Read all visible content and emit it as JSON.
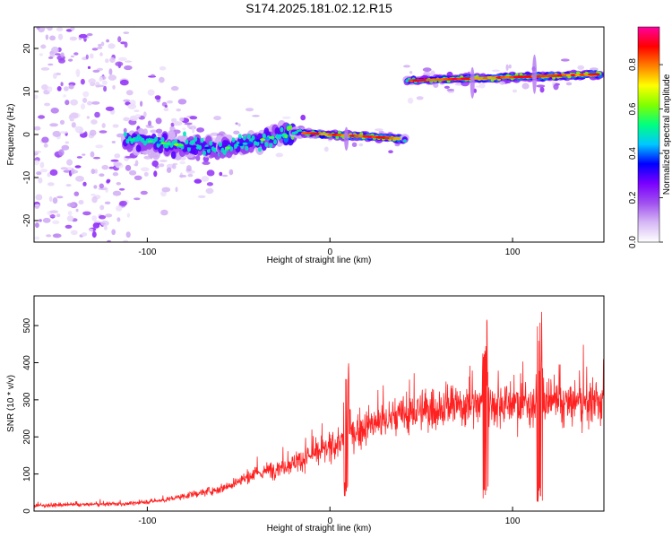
{
  "title": "S174.2025.181.02.12.R15",
  "chart_data": [
    {
      "type": "heatmap",
      "xlabel": "Height of straight line (km)",
      "ylabel": "Frequency (Hz)",
      "xlim": [
        -162,
        150
      ],
      "ylim": [
        -25,
        25
      ],
      "x_ticks": [
        -100,
        0,
        100
      ],
      "y_ticks": [
        -20,
        -10,
        0,
        10,
        20
      ],
      "colorbar": {
        "label": "Normalized spectral amplitude",
        "range": [
          0,
          0.97
        ],
        "ticks": [
          "0.0",
          "0.2",
          "0.4",
          "0.6",
          "0.8"
        ],
        "colors": [
          "#ffffff",
          "#d6b8f5",
          "#a050f0",
          "#7a00ff",
          "#0000ff",
          "#00c8ff",
          "#00ff80",
          "#80ff00",
          "#ffff00",
          "#ff8000",
          "#ff0000",
          "#ff00a0"
        ]
      },
      "ridge": [
        {
          "x_from": -112,
          "x_to": -60,
          "f_from": -1,
          "f_to": -3.5
        },
        {
          "x_from": -60,
          "x_to": -20,
          "f_from": -3.5,
          "f_to": 0.5
        },
        {
          "x_from": -20,
          "x_to": 41,
          "f_from": 0.5,
          "f_to": -1
        },
        {
          "x_from": 41,
          "x_to": 148,
          "f_from": 12.5,
          "f_to": 14
        }
      ],
      "grid": false
    },
    {
      "type": "line",
      "xlabel": "Height of straight line (km)",
      "ylabel": "SNR (10 * v/v)",
      "xlim": [
        -162,
        150
      ],
      "ylim": [
        0,
        580
      ],
      "x_ticks": [
        -100,
        0,
        100
      ],
      "y_ticks": [
        0,
        100,
        200,
        300,
        400,
        500
      ],
      "color": "#ff2020",
      "trend": [
        {
          "x": -162,
          "y": 15
        },
        {
          "x": -110,
          "y": 20
        },
        {
          "x": -90,
          "y": 30
        },
        {
          "x": -60,
          "y": 60
        },
        {
          "x": -40,
          "y": 100
        },
        {
          "x": -20,
          "y": 130
        },
        {
          "x": 0,
          "y": 170
        },
        {
          "x": 20,
          "y": 230
        },
        {
          "x": 50,
          "y": 270
        },
        {
          "x": 80,
          "y": 290
        },
        {
          "x": 110,
          "y": 290
        },
        {
          "x": 150,
          "y": 290
        }
      ],
      "spikes": [
        {
          "x": 85,
          "y_max": 545,
          "y_min": 30
        },
        {
          "x": 115,
          "y_max": 580,
          "y_min": 25
        },
        {
          "x": 9,
          "y_max": 400,
          "y_min": 40
        }
      ],
      "grid": false
    }
  ]
}
